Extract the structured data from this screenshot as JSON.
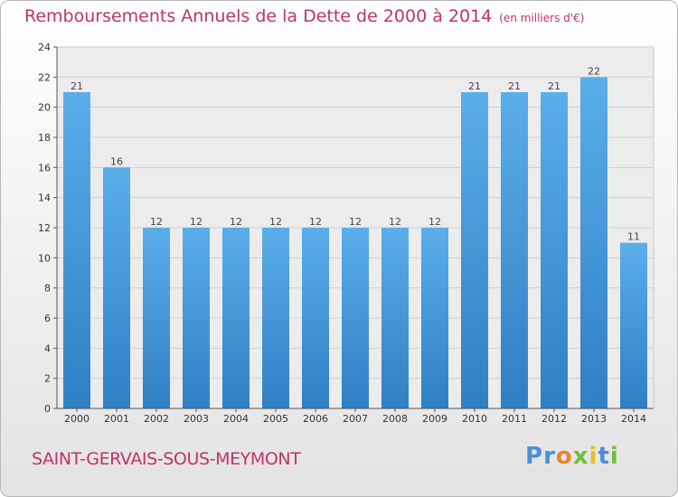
{
  "chart_data": {
    "type": "bar",
    "title": "Remboursements Annuels de la Dette de 2000 à 2014",
    "unit_note": "(en milliers d'€)",
    "categories": [
      "2000",
      "2001",
      "2002",
      "2003",
      "2004",
      "2005",
      "2006",
      "2007",
      "2008",
      "2009",
      "2010",
      "2011",
      "2012",
      "2013",
      "2014"
    ],
    "values": [
      21,
      16,
      12,
      12,
      12,
      12,
      12,
      12,
      12,
      12,
      21,
      21,
      21,
      22,
      11
    ],
    "ylim": [
      0,
      24
    ],
    "yticks": [
      0,
      2,
      4,
      6,
      8,
      10,
      12,
      14,
      16,
      18,
      20,
      22,
      24
    ],
    "grid": true,
    "bar_color": "#4a9ee0",
    "title_color": "#c0336d"
  },
  "footer": {
    "commune": "SAINT-GERVAIS-SOUS-MEYMONT",
    "brand_letters": [
      {
        "ch": "P",
        "color": "#4a8ed8"
      },
      {
        "ch": "r",
        "color": "#4a8ed8"
      },
      {
        "ch": "o",
        "color": "#e7852a"
      },
      {
        "ch": "x",
        "color": "#6fbf3a"
      },
      {
        "ch": "i",
        "color": "#e7c12a"
      },
      {
        "ch": "t",
        "color": "#4a8ed8"
      },
      {
        "ch": "i",
        "color": "#6fbf3a"
      }
    ]
  }
}
